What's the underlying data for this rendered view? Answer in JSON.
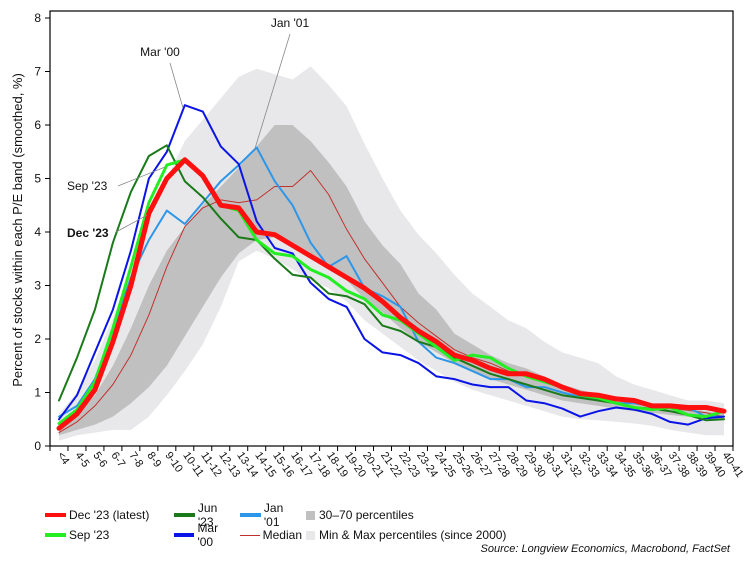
{
  "chart_data": {
    "type": "line",
    "title": "",
    "xlabel": "",
    "ylabel": "Percent of stocks within each P/E band (smoothed, %)",
    "ylim": [
      0,
      8
    ],
    "yticks": [
      0,
      1,
      2,
      3,
      4,
      5,
      6,
      7,
      8
    ],
    "grid": false,
    "categories": [
      "<4",
      "4-5",
      "5-6",
      "6-7",
      "7-8",
      "8-9",
      "9-10",
      "10-11",
      "11-12",
      "12-13",
      "13-14",
      "14-15",
      "15-16",
      "16-17",
      "17-18",
      "18-19",
      "19-20",
      "20-21",
      "21-22",
      "22-23",
      "23-24",
      "24-25",
      "25-26",
      "26-27",
      "27-28",
      "28-29",
      "29-30",
      "30-31",
      "31-32",
      "32-33",
      "33-34",
      "34-35",
      "35-36",
      "36-37",
      "37-38",
      "38-39",
      "39-40",
      "40-41"
    ],
    "bands": [
      {
        "name": "Min & Max percentiles (since 2000)",
        "color": "#e8e8ea",
        "lower": [
          0.1,
          0.2,
          0.25,
          0.3,
          0.3,
          0.55,
          0.95,
          1.4,
          1.9,
          2.6,
          3.45,
          3.65,
          3.5,
          3.3,
          3.1,
          2.95,
          2.7,
          2.35,
          2.1,
          1.85,
          1.6,
          1.4,
          1.2,
          1.05,
          0.95,
          0.85,
          0.75,
          0.65,
          0.55,
          0.5,
          0.48,
          0.45,
          0.42,
          0.38,
          0.3,
          0.25,
          0.2,
          0.2
        ],
        "upper": [
          0.6,
          1.0,
          1.6,
          2.4,
          3.3,
          4.2,
          5.0,
          5.7,
          6.1,
          6.5,
          6.9,
          7.05,
          6.95,
          6.85,
          7.1,
          6.75,
          6.35,
          5.65,
          5.0,
          4.4,
          3.95,
          3.6,
          3.2,
          2.85,
          2.6,
          2.35,
          2.2,
          1.95,
          1.75,
          1.65,
          1.55,
          1.3,
          1.15,
          1.05,
          0.95,
          0.85,
          0.85,
          0.8
        ]
      },
      {
        "name": "30-70 percentiles",
        "color": "#c0c0c0",
        "lower": [
          0.2,
          0.3,
          0.4,
          0.55,
          0.8,
          1.1,
          1.5,
          2.05,
          2.6,
          3.15,
          3.6,
          3.85,
          3.9,
          3.8,
          3.6,
          3.4,
          3.1,
          2.75,
          2.5,
          2.2,
          1.95,
          1.75,
          1.55,
          1.4,
          1.25,
          1.15,
          1.05,
          0.95,
          0.85,
          0.8,
          0.75,
          0.7,
          0.65,
          0.62,
          0.58,
          0.55,
          0.52,
          0.5
        ],
        "upper": [
          0.35,
          0.6,
          0.95,
          1.5,
          2.2,
          3.0,
          3.65,
          4.1,
          4.5,
          4.85,
          5.2,
          5.6,
          6.0,
          6.0,
          5.7,
          5.3,
          4.85,
          4.2,
          3.75,
          3.4,
          2.85,
          2.55,
          2.1,
          1.9,
          1.7,
          1.55,
          1.45,
          1.3,
          1.15,
          1.05,
          0.95,
          0.9,
          0.85,
          0.8,
          0.75,
          0.7,
          0.65,
          0.6
        ]
      }
    ],
    "series": [
      {
        "name": "Median",
        "color": "#c0322e",
        "width": 1,
        "values": [
          0.25,
          0.45,
          0.75,
          1.15,
          1.7,
          2.45,
          3.35,
          4.1,
          4.45,
          4.6,
          4.55,
          4.6,
          4.85,
          4.85,
          5.15,
          4.7,
          4.05,
          3.5,
          3.05,
          2.6,
          2.3,
          2.05,
          1.8,
          1.65,
          1.55,
          1.4,
          1.3,
          1.2,
          1.1,
          1.0,
          0.92,
          0.85,
          0.8,
          0.75,
          0.7,
          0.67,
          0.62,
          0.55
        ]
      },
      {
        "name": "Jan '01",
        "color": "#2e96e8",
        "width": 2,
        "values": [
          0.55,
          0.75,
          1.25,
          2.15,
          3.15,
          3.85,
          4.4,
          4.15,
          4.55,
          4.95,
          5.25,
          5.58,
          4.95,
          4.5,
          3.8,
          3.35,
          3.55,
          2.95,
          2.8,
          2.6,
          1.95,
          1.65,
          1.55,
          1.4,
          1.25,
          1.25,
          1.1,
          1.1,
          1.0,
          0.92,
          0.88,
          0.8,
          0.8,
          0.75,
          0.75,
          0.72,
          0.55,
          0.55
        ]
      },
      {
        "name": "Mar '00",
        "color": "#0a14e6",
        "width": 2,
        "values": [
          0.5,
          0.95,
          1.75,
          2.55,
          3.65,
          5.0,
          5.5,
          6.37,
          6.25,
          5.6,
          5.27,
          4.2,
          3.7,
          3.6,
          3.05,
          2.75,
          2.6,
          2.0,
          1.75,
          1.7,
          1.55,
          1.3,
          1.25,
          1.15,
          1.1,
          1.1,
          0.85,
          0.8,
          0.7,
          0.55,
          0.65,
          0.72,
          0.68,
          0.6,
          0.45,
          0.4,
          0.52,
          0.55
        ]
      },
      {
        "name": "Jun '23",
        "color": "#1a7a1a",
        "width": 2,
        "values": [
          0.85,
          1.65,
          2.55,
          3.8,
          4.75,
          5.42,
          5.62,
          4.95,
          4.65,
          4.25,
          3.9,
          3.85,
          3.5,
          3.2,
          3.15,
          2.85,
          2.8,
          2.65,
          2.25,
          2.15,
          1.95,
          1.85,
          1.65,
          1.5,
          1.35,
          1.25,
          1.15,
          1.05,
          0.95,
          0.9,
          0.85,
          0.8,
          0.72,
          0.7,
          0.65,
          0.58,
          0.48,
          0.5
        ]
      },
      {
        "name": "Sep '23",
        "color": "#22ee22",
        "width": 3,
        "values": [
          0.42,
          0.68,
          1.2,
          2.2,
          3.35,
          4.55,
          5.25,
          5.35,
          5.05,
          4.5,
          4.4,
          3.85,
          3.6,
          3.55,
          3.3,
          3.15,
          2.9,
          2.75,
          2.45,
          2.35,
          2.1,
          1.85,
          1.6,
          1.7,
          1.65,
          1.45,
          1.3,
          1.2,
          1.1,
          0.95,
          0.9,
          0.8,
          0.72,
          0.68,
          0.72,
          0.58,
          0.55,
          0.65
        ]
      },
      {
        "name": "Dec '23 (latest)",
        "color": "#ff1010",
        "width": 5,
        "values": [
          0.33,
          0.6,
          1.05,
          1.95,
          3.0,
          4.35,
          5.0,
          5.35,
          5.05,
          4.5,
          4.45,
          4.0,
          3.95,
          3.75,
          3.55,
          3.35,
          3.15,
          2.95,
          2.7,
          2.4,
          2.15,
          1.95,
          1.7,
          1.6,
          1.45,
          1.35,
          1.35,
          1.25,
          1.1,
          0.98,
          0.95,
          0.88,
          0.85,
          0.75,
          0.75,
          0.72,
          0.72,
          0.65
        ]
      }
    ],
    "annotations": [
      {
        "text": "Mar '00",
        "series": "Mar '00",
        "category": "10-11",
        "bold": false
      },
      {
        "text": "Jan '01",
        "series": "Jan '01",
        "category": "14-15",
        "bold": false
      },
      {
        "text": "Sep '23",
        "series": "Sep '23",
        "category": "9-10",
        "bold": false
      },
      {
        "text": "Dec '23",
        "series": "Dec '23 (latest)",
        "category": "8-9",
        "bold": true
      }
    ],
    "legend": {
      "placement": "bottom",
      "rows": [
        [
          {
            "label": "Dec '23 (latest)",
            "kind": "line",
            "color": "#ff1010"
          },
          {
            "label": "Jun '23",
            "kind": "line",
            "color": "#1a7a1a"
          },
          {
            "label": "Jan '01",
            "kind": "line",
            "color": "#2e96e8"
          },
          {
            "label": "30–70 percentiles",
            "kind": "box",
            "color": "#c0c0c0"
          }
        ],
        [
          {
            "label": "Sep '23",
            "kind": "line",
            "color": "#22ee22"
          },
          {
            "label": "Mar '00",
            "kind": "line",
            "color": "#0a14e6"
          },
          {
            "label": "Median",
            "kind": "thinline",
            "color": "#c0322e"
          },
          {
            "label": "Min & Max percentiles (since 2000)",
            "kind": "box",
            "color": "#e8e8ea"
          }
        ]
      ]
    },
    "source": "Source: Longview Economics, Macrobond, FactSet"
  }
}
